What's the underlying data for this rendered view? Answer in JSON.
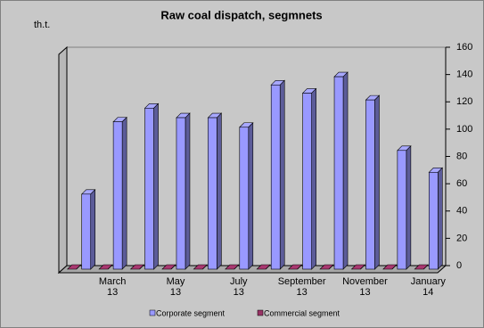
{
  "chart_data": {
    "type": "bar3d",
    "title": "Raw coal dispatch, segmnets",
    "y_unit": "th.t.",
    "categories": [
      null,
      [
        "March",
        "13"
      ],
      null,
      [
        "May",
        "13"
      ],
      null,
      [
        "July",
        "13"
      ],
      null,
      [
        "September",
        "13"
      ],
      null,
      [
        "November",
        "13"
      ],
      null,
      [
        "January",
        "14"
      ]
    ],
    "series": [
      {
        "name": "Corporate segment",
        "color": "#9999ff",
        "values": [
          55,
          108,
          118,
          111,
          111,
          104,
          135,
          129,
          141,
          124,
          87,
          71
        ]
      },
      {
        "name": "Commercial segment",
        "color": "#993366",
        "values": [
          0,
          0,
          0,
          0,
          0,
          0,
          0,
          0,
          0,
          0,
          0,
          0
        ]
      }
    ],
    "ylim": [
      0,
      160
    ],
    "yticks": [
      0,
      20,
      40,
      60,
      80,
      100,
      120,
      140,
      160
    ],
    "axis_side": "right",
    "legend": "bottom"
  }
}
